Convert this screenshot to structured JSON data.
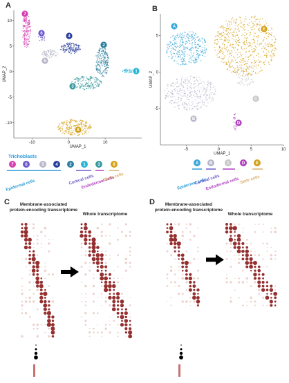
{
  "panels": {
    "A": {
      "letter": "A",
      "xlabel": "UMAP_1",
      "ylabel": "UMAP_2",
      "xlim": [
        -15,
        20
      ],
      "ylim": [
        -13,
        12
      ],
      "xticks": [
        -10,
        0,
        10
      ],
      "yticks": [
        10,
        5,
        0,
        -5,
        -10
      ],
      "clusters": [
        {
          "label": "7",
          "color": "#d63fb0"
        },
        {
          "label": "6",
          "color": "#6a5acd"
        },
        {
          "label": "5",
          "color": "#b8b8c8"
        },
        {
          "label": "4",
          "color": "#2a3f9c"
        },
        {
          "label": "2",
          "color": "#2b7f9e"
        },
        {
          "label": "1",
          "color": "#26b5d6"
        },
        {
          "label": "3",
          "color": "#3b9aa0"
        },
        {
          "label": "8",
          "color": "#d4a017"
        }
      ],
      "legend_title": "Trichoblasts",
      "groups": [
        "Epidermal cells",
        "Cortical cells",
        "Endodermal cells",
        "Stele cells"
      ]
    },
    "B": {
      "letter": "B",
      "xlabel": "UMAP_1",
      "ylabel": "UMAP_2",
      "xlim": [
        -9,
        10
      ],
      "ylim": [
        -10,
        8
      ],
      "xticks": [
        -5,
        0,
        5,
        10
      ],
      "yticks": [
        5,
        0,
        -5
      ],
      "clusters": [
        {
          "label": "A",
          "color": "#3aa8d8"
        },
        {
          "label": "B",
          "color": "#b8b8cc"
        },
        {
          "label": "C",
          "color": "#c8c8c8"
        },
        {
          "label": "D",
          "color": "#b040c0"
        },
        {
          "label": "E",
          "color": "#d4a017"
        }
      ],
      "groups": [
        "Epidermal cells",
        "Cortical cells",
        "Endodermal cells",
        "Stele cells"
      ]
    },
    "C": {
      "letter": "C",
      "title_left": "Membrane-associated protein-encoding transcriptome",
      "title_right": "Whole transcriptome"
    },
    "D": {
      "letter": "D",
      "title_left": "Membrane-associated protein-encoding transcriptome",
      "title_right": "Whole transcriptome"
    }
  }
}
